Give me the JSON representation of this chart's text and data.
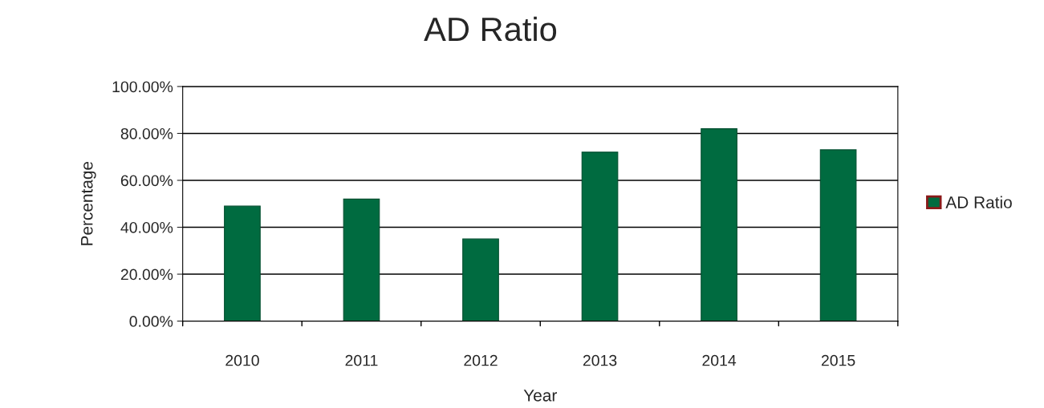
{
  "chart_data": {
    "type": "bar",
    "title": "AD Ratio",
    "xlabel": "Year",
    "ylabel": "Percentage",
    "categories": [
      "2010",
      "2011",
      "2012",
      "2013",
      "2014",
      "2015"
    ],
    "series": [
      {
        "name": "AD Ratio",
        "color": "#006b40",
        "values": [
          49,
          52,
          35,
          72,
          82,
          73
        ]
      }
    ],
    "ylim": [
      0,
      100
    ],
    "yticks": [
      {
        "value": 0,
        "label": "0.00%"
      },
      {
        "value": 20,
        "label": "20.00%"
      },
      {
        "value": 40,
        "label": "40.00%"
      },
      {
        "value": 60,
        "label": "60.00%"
      },
      {
        "value": 80,
        "label": "80.00%"
      },
      {
        "value": 100,
        "label": "100.00%"
      }
    ],
    "grid": "y",
    "legend": "right"
  }
}
